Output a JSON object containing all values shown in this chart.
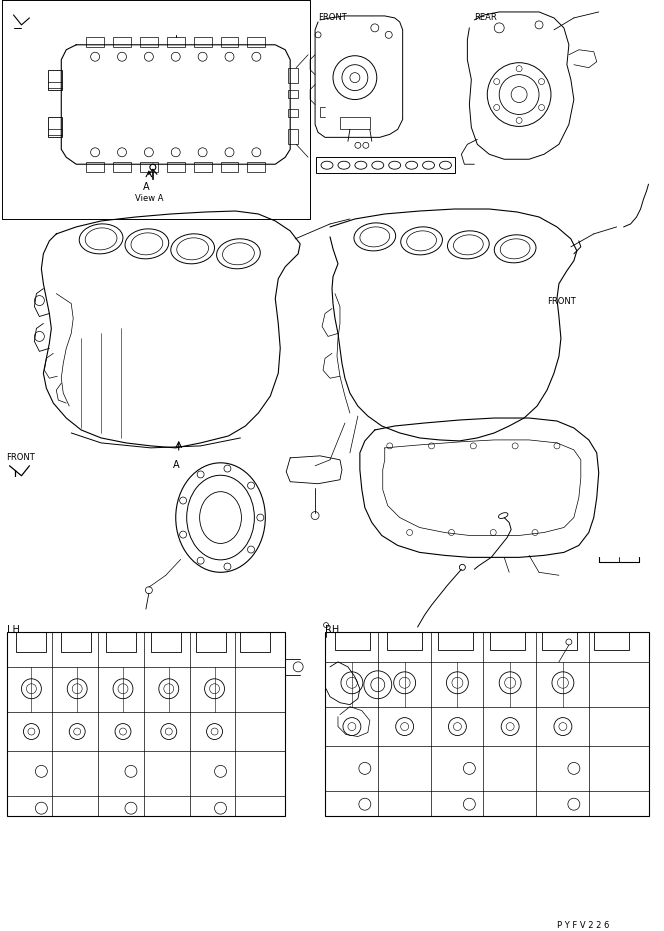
{
  "bg_color": "#ffffff",
  "line_color": "#000000",
  "page_code": "P Y F V 2 2 6",
  "fig_width": 6.64,
  "fig_height": 9.31,
  "dpi": 100,
  "labels": {
    "front_left": "FRONT",
    "front_right": "FRONT",
    "rear": "REAR",
    "view_a": "View A",
    "view_a_label": "A",
    "lh": "LH",
    "rh": "RH"
  }
}
